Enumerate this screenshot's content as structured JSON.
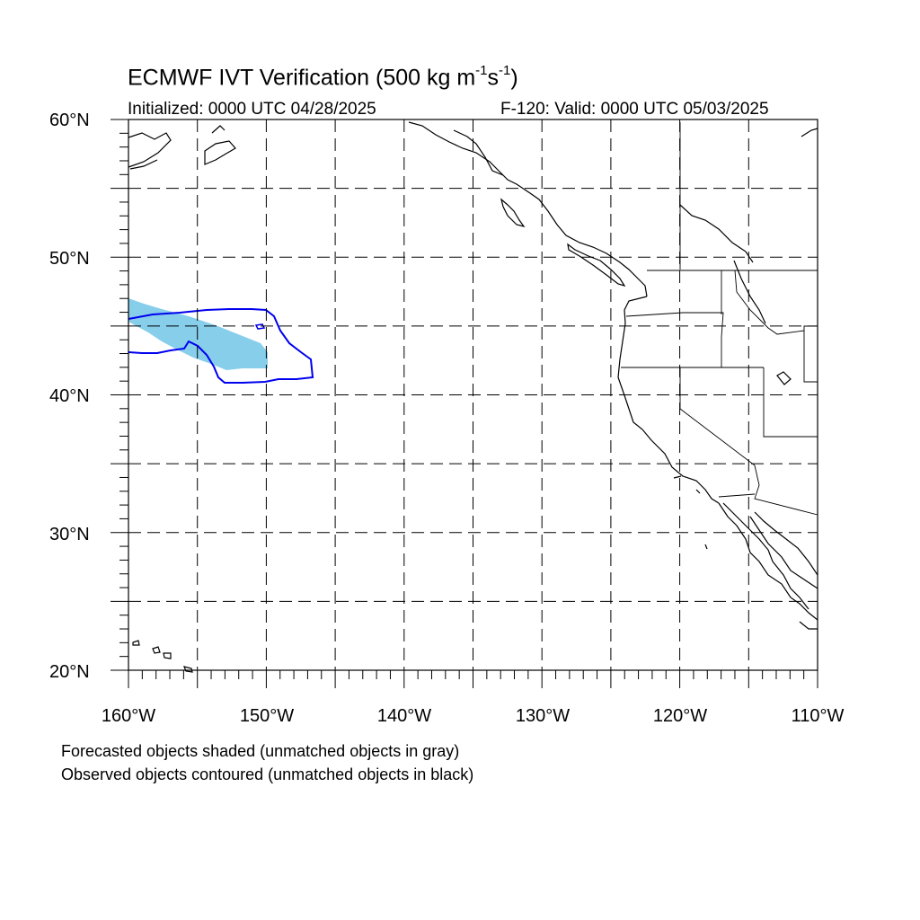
{
  "title": {
    "main": "ECMWF IVT Verification (500 kg m",
    "exp1": "-1",
    "mid": "s",
    "exp2": "-1",
    "end": ")"
  },
  "subtitle": {
    "initialized": "Initialized: 0000 UTC 04/28/2025",
    "valid": "F-120: Valid: 0000 UTC 05/03/2025"
  },
  "map": {
    "lon_range": [
      -160,
      -110
    ],
    "lat_range": [
      20,
      60
    ],
    "projection": "cylindrical equidistant",
    "grid": "dashed every 5 degrees"
  },
  "axis_labels": {
    "lat": [
      "60°N",
      "50°N",
      "40°N",
      "30°N",
      "20°N"
    ],
    "lon": [
      "160°W",
      "150°W",
      "140°W",
      "130°W",
      "120°W",
      "110°W"
    ]
  },
  "objects": {
    "forecast_color": "#87ceeb",
    "observed_color": "#0000ee"
  },
  "notes": {
    "line1": "Forecasted objects shaded (unmatched objects in gray)",
    "line2": "Observed objects contoured (unmatched objects in black)"
  }
}
